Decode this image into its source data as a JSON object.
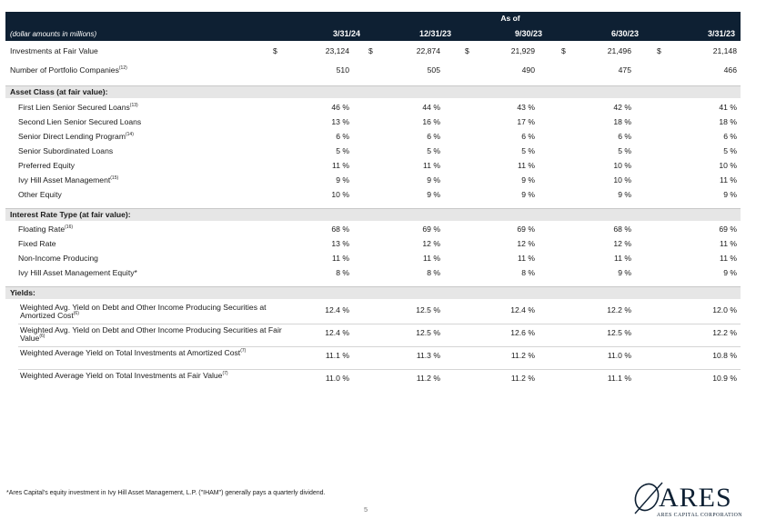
{
  "header": {
    "as_of": "As of",
    "unit_label": "(dollar amounts in millions)",
    "columns": [
      "3/31/24",
      "12/31/23",
      "9/30/23",
      "6/30/23",
      "3/31/23"
    ]
  },
  "investments": {
    "label": "Investments at Fair Value",
    "currency": "$",
    "values": [
      "23,124",
      "22,874",
      "21,929",
      "21,496",
      "21,148"
    ]
  },
  "portfolio_companies": {
    "label": "Number of Portfolio Companies",
    "note": "(12)",
    "values": [
      "510",
      "505",
      "490",
      "475",
      "466"
    ]
  },
  "asset_class": {
    "title": "Asset Class (at fair value):",
    "rows": [
      {
        "label": "First Lien Senior Secured Loans",
        "note": "(13)",
        "values": [
          "46 %",
          "44 %",
          "43 %",
          "42 %",
          "41 %"
        ]
      },
      {
        "label": "Second Lien Senior Secured Loans",
        "note": "",
        "values": [
          "13 %",
          "16 %",
          "17 %",
          "18 %",
          "18 %"
        ]
      },
      {
        "label": "Senior Direct Lending Program",
        "note": "(14)",
        "values": [
          "6 %",
          "6 %",
          "6 %",
          "6 %",
          "6 %"
        ]
      },
      {
        "label": "Senior Subordinated Loans",
        "note": "",
        "values": [
          "5 %",
          "5 %",
          "5 %",
          "5 %",
          "5 %"
        ]
      },
      {
        "label": "Preferred Equity",
        "note": "",
        "values": [
          "11 %",
          "11 %",
          "11 %",
          "10 %",
          "10 %"
        ]
      },
      {
        "label": "Ivy Hill Asset Management",
        "note": "(15)",
        "values": [
          "9 %",
          "9 %",
          "9 %",
          "10 %",
          "11 %"
        ]
      },
      {
        "label": "Other Equity",
        "note": "",
        "values": [
          "10 %",
          "9 %",
          "9 %",
          "9 %",
          "9 %"
        ]
      }
    ]
  },
  "interest_rate": {
    "title": "Interest Rate Type (at fair value):",
    "rows": [
      {
        "label": "Floating Rate",
        "note": "(16)",
        "values": [
          "68 %",
          "69 %",
          "69 %",
          "68 %",
          "69 %"
        ]
      },
      {
        "label": "Fixed Rate",
        "note": "",
        "values": [
          "13 %",
          "12 %",
          "12 %",
          "12 %",
          "11 %"
        ]
      },
      {
        "label": "Non-Income Producing",
        "note": "",
        "values": [
          "11 %",
          "11 %",
          "11 %",
          "11 %",
          "11 %"
        ]
      },
      {
        "label": "Ivy Hill Asset Management Equity*",
        "note": "",
        "values": [
          "8 %",
          "8 %",
          "8 %",
          "9 %",
          "9 %"
        ]
      }
    ]
  },
  "yields": {
    "title": "Yields:",
    "rows": [
      {
        "label": "Weighted Avg. Yield on Debt and Other Income Producing Securities at Amortized Cost",
        "note": "(6)",
        "values": [
          "12.4 %",
          "12.5 %",
          "12.4 %",
          "12.2 %",
          "12.0 %"
        ]
      },
      {
        "label": "Weighted Avg. Yield on Debt and Other Income Producing Securities at Fair Value",
        "note": "(6)",
        "values": [
          "12.4 %",
          "12.5 %",
          "12.6 %",
          "12.5 %",
          "12.2 %"
        ]
      },
      {
        "label": "Weighted Average Yield on Total Investments at Amortized Cost",
        "note": "(7)",
        "values": [
          "11.1 %",
          "11.3 %",
          "11.2 %",
          "11.0 %",
          "10.8 %"
        ]
      },
      {
        "label": "Weighted Average Yield on Total Investments at Fair Value",
        "note": "(7)",
        "values": [
          "11.0 %",
          "11.2 %",
          "11.2 %",
          "11.1 %",
          "10.9 %"
        ]
      }
    ]
  },
  "footnote": "*Ares Capital's equity investment in Ivy Hill Asset Management, L.P. (\"IHAM\") generally pays a quarterly dividend.",
  "page_number": "5",
  "logo": {
    "word": "ARES",
    "subtitle": "ARES CAPITAL CORPORATION",
    "color": "#0e2033"
  }
}
